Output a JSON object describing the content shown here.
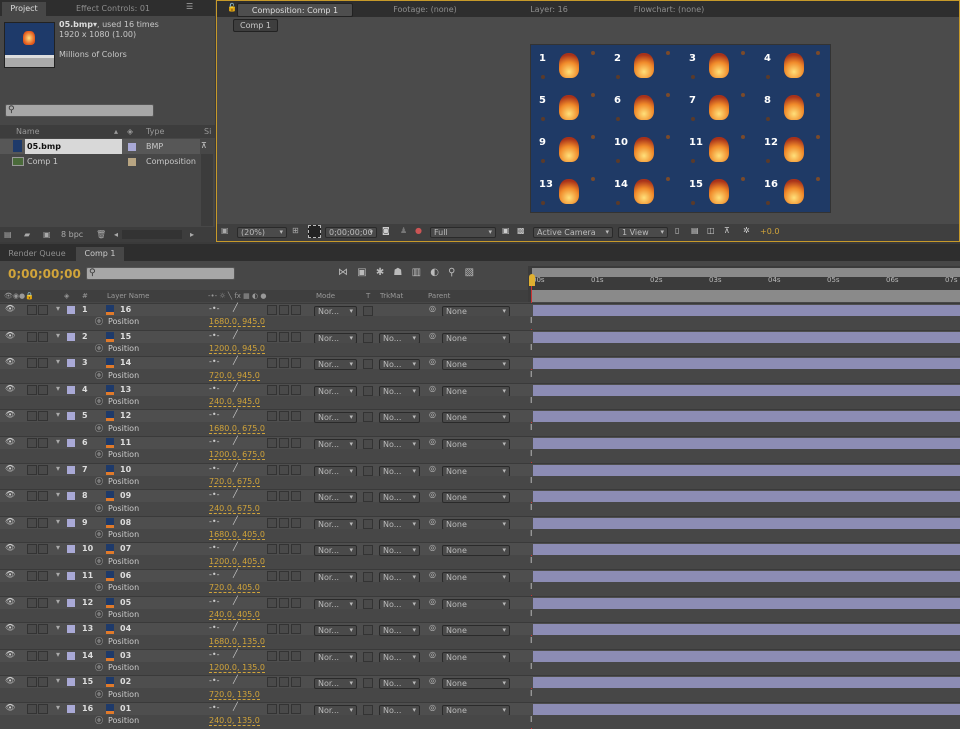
{
  "project": {
    "tab": "Project",
    "effect_tab": "Effect Controls: 01",
    "file_name": "05.bmp▾",
    "used": ", used 16 times",
    "dims": "1920 x 1080 (1.00)",
    "colors": "Millions of Colors",
    "search_placeholder": "",
    "columns": {
      "name": "Name",
      "type": "Type",
      "size": "Si"
    },
    "items": [
      {
        "name": "05.bmp",
        "type": "BMP",
        "label_color": "#a9a9d6"
      },
      {
        "name": "Comp 1",
        "type": "Composition",
        "label_color": "#b8a582"
      }
    ],
    "bpc": "8 bpc"
  },
  "comp": {
    "tabs": [
      "Composition: Comp 1",
      "Footage: (none)",
      "Layer: 16",
      "Flowchart: (none)"
    ],
    "breadcrumb": "Comp 1",
    "zoom": "(20%)",
    "timecode": "0;00;00;00",
    "resolution": "Full",
    "camera": "Active Camera",
    "views": "1 View",
    "exposure": "+0.0",
    "tile_labels": [
      "1",
      "2",
      "3",
      "4",
      "5",
      "6",
      "7",
      "8",
      "9",
      "10",
      "11",
      "12",
      "13",
      "14",
      "15",
      "16"
    ]
  },
  "timeline": {
    "tabs": [
      "Render Queue",
      "Comp 1"
    ],
    "timecode": "0;00;00;00",
    "columns": {
      "layer_name": "Layer Name",
      "mode": "Mode",
      "t": "T",
      "trkmat": "TrkMat",
      "parent": "Parent",
      "num": "#"
    },
    "ruler": [
      "00s",
      "01s",
      "02s",
      "03s",
      "04s",
      "05s",
      "06s",
      "07s"
    ],
    "property": "Position",
    "mode_value": "Nor...",
    "trkmat_value": "No...",
    "parent_value": "None",
    "layers": [
      {
        "index": "1",
        "name": "16",
        "position": "1680.0, 945.0"
      },
      {
        "index": "2",
        "name": "15",
        "position": "1200.0, 945.0"
      },
      {
        "index": "3",
        "name": "14",
        "position": "720.0, 945.0"
      },
      {
        "index": "4",
        "name": "13",
        "position": "240.0, 945.0"
      },
      {
        "index": "5",
        "name": "12",
        "position": "1680.0, 675.0"
      },
      {
        "index": "6",
        "name": "11",
        "position": "1200.0, 675.0"
      },
      {
        "index": "7",
        "name": "10",
        "position": "720.0, 675.0"
      },
      {
        "index": "8",
        "name": "09",
        "position": "240.0, 675.0"
      },
      {
        "index": "9",
        "name": "08",
        "position": "1680.0, 405.0"
      },
      {
        "index": "10",
        "name": "07",
        "position": "1200.0, 405.0"
      },
      {
        "index": "11",
        "name": "06",
        "position": "720.0, 405.0"
      },
      {
        "index": "12",
        "name": "05",
        "position": "240.0, 405.0"
      },
      {
        "index": "13",
        "name": "04",
        "position": "1680.0, 135.0"
      },
      {
        "index": "14",
        "name": "03",
        "position": "1200.0, 135.0"
      },
      {
        "index": "15",
        "name": "02",
        "position": "720.0, 135.0"
      },
      {
        "index": "16",
        "name": "01",
        "position": "240.0, 135.0"
      }
    ],
    "colors": {
      "bar": "#8c8cb4",
      "label": "#a9a9d6",
      "accent": "#d1a43a"
    }
  }
}
